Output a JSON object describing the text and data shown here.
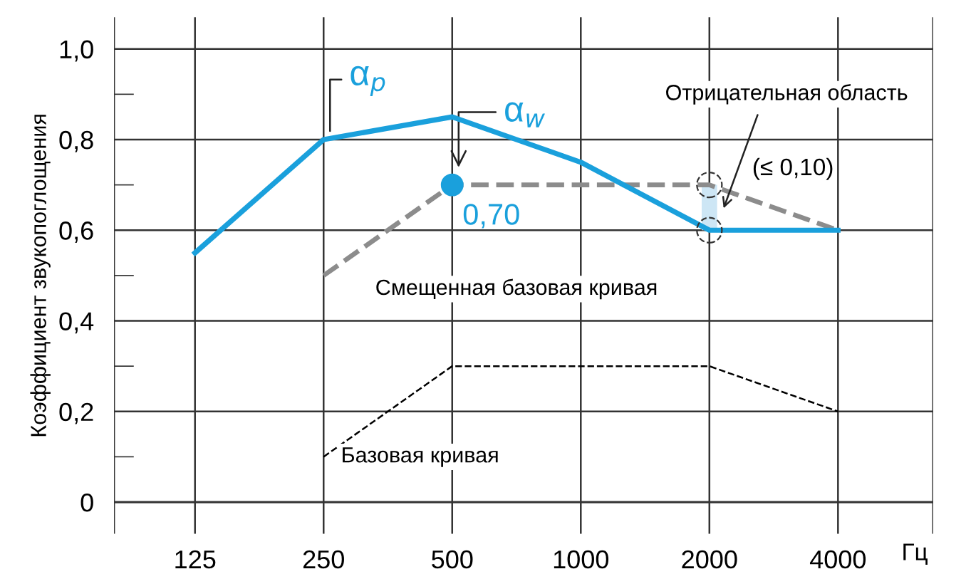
{
  "chart_data": {
    "type": "line",
    "categories": [
      "125",
      "250",
      "500",
      "1000",
      "2000",
      "4000"
    ],
    "xlabel": "Гц",
    "ylabel": "Коэффициент звукопоглощения",
    "ylim": [
      -0.07,
      1.07
    ],
    "yticks": [
      {
        "value": 0,
        "label": "0"
      },
      {
        "value": 0.1,
        "label": null
      },
      {
        "value": 0.2,
        "label": "0,2"
      },
      {
        "value": 0.3,
        "label": null
      },
      {
        "value": 0.4,
        "label": "0,4"
      },
      {
        "value": 0.5,
        "label": null
      },
      {
        "value": 0.6,
        "label": "0,6"
      },
      {
        "value": 0.7,
        "label": null
      },
      {
        "value": 0.8,
        "label": "0,8"
      },
      {
        "value": 0.9,
        "label": null
      },
      {
        "value": 1.0,
        "label": "1,0"
      }
    ],
    "grid": true,
    "series": [
      {
        "color": "#8c8c8c",
        "line_style": "dashed",
        "values": [
          null,
          0.5,
          0.7,
          0.7,
          0.7,
          0.6
        ]
      },
      {
        "color": "#000000",
        "line_style": "dashed",
        "values": [
          null,
          0.1,
          0.3,
          0.3,
          0.3,
          0.2
        ]
      },
      {
        "type": "bar",
        "color": "#cde6f5",
        "base": [
          null,
          null,
          null,
          null,
          0.6,
          null
        ],
        "values": [
          null,
          null,
          null,
          null,
          0.1,
          null
        ]
      },
      {
        "name": "α$_{p}$",
        "color": "#1aa0dc",
        "line_style": "solid",
        "values": [
          0.55,
          0.8,
          0.85,
          0.75,
          0.6,
          0.6
        ]
      },
      {
        "type": "scatter",
        "name": "α$_{w}$",
        "color": "#1aa0dc",
        "marker": "circle",
        "values": [
          null,
          null,
          0.7,
          null,
          null,
          null
        ],
        "value_labels": [
          null,
          null,
          "0,70",
          null,
          null,
          null
        ]
      }
    ],
    "annotations": [
      "Смещенная базовая кривая",
      "Базовая кривая",
      "Отрицательная область",
      "(≤ 0,10)"
    ]
  }
}
